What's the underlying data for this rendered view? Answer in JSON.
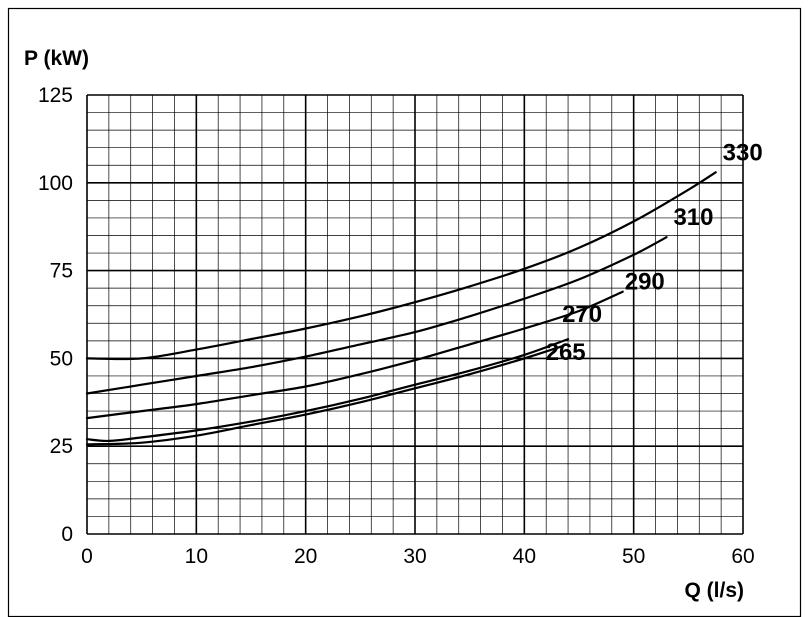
{
  "chart_data": {
    "type": "line",
    "ylabel": "P (kW)",
    "xlabel": "Q (l/s)",
    "xlim": [
      0,
      60
    ],
    "ylim": [
      0,
      125
    ],
    "x_ticks": [
      "0",
      "10",
      "20",
      "30",
      "40",
      "50",
      "60"
    ],
    "y_ticks": [
      "0",
      "25",
      "50",
      "75",
      "100",
      "125"
    ],
    "grid": true,
    "series": [
      {
        "name": "330",
        "x": [
          0,
          5,
          10,
          15,
          20,
          25,
          30,
          35,
          40,
          45,
          50,
          55,
          57.5
        ],
        "y": [
          50,
          50,
          52.5,
          55.5,
          58.5,
          62,
          66,
          70.5,
          75.5,
          81.5,
          89,
          98,
          103
        ]
      },
      {
        "name": "310",
        "x": [
          0,
          5,
          10,
          15,
          20,
          25,
          30,
          35,
          40,
          45,
          50,
          53
        ],
        "y": [
          40,
          42.5,
          45,
          47.5,
          50.5,
          54,
          57.5,
          62,
          67,
          72.5,
          79.5,
          84.5
        ]
      },
      {
        "name": "290",
        "x": [
          0,
          5,
          10,
          15,
          20,
          25,
          30,
          35,
          40,
          45,
          49
        ],
        "y": [
          33,
          35,
          37,
          39.5,
          42,
          45.5,
          49.5,
          54,
          58.5,
          63.5,
          69
        ]
      },
      {
        "name": "270",
        "x": [
          0,
          2,
          5,
          10,
          15,
          20,
          25,
          30,
          35,
          40,
          44
        ],
        "y": [
          27,
          26.5,
          27.5,
          29.5,
          32,
          35,
          38.5,
          42.5,
          46.5,
          51,
          55.5
        ]
      },
      {
        "name": "265",
        "x": [
          0,
          5,
          10,
          15,
          20,
          25,
          30,
          35,
          40,
          43.5
        ],
        "y": [
          25.5,
          26,
          28,
          31,
          34,
          37.5,
          41.5,
          45.5,
          50,
          53.5
        ]
      }
    ]
  }
}
